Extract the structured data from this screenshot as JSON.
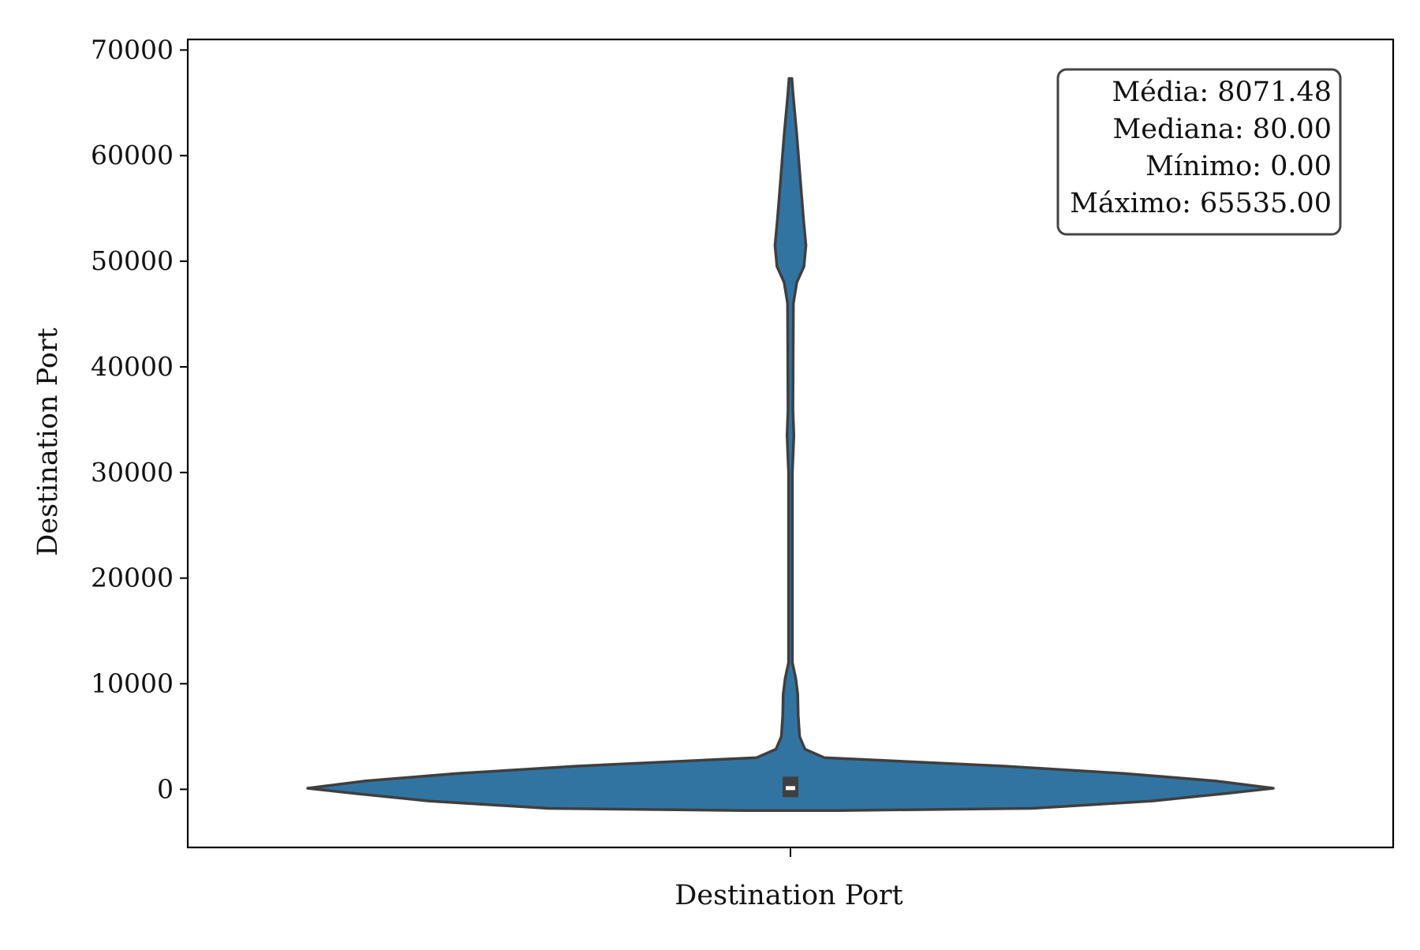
{
  "chart_data": {
    "type": "violin",
    "xlabel": "Destination Port",
    "ylabel": "Destination Port",
    "ylim": [
      -5500,
      71000
    ],
    "yticks": [
      0,
      10000,
      20000,
      30000,
      40000,
      50000,
      60000,
      70000
    ],
    "ytick_labels": [
      "0",
      "10000",
      "20000",
      "30000",
      "40000",
      "50000",
      "60000",
      "70000"
    ],
    "categories": [
      ""
    ],
    "grid": false,
    "colors": {
      "violin_fill": "#3274a1",
      "violin_edge": "#3f3f3f",
      "box": "#3f3f3f",
      "median": "#ffffff"
    },
    "violin": {
      "density_profile": [
        {
          "y": -2000,
          "half_width": 0.1
        },
        {
          "y": -1800,
          "half_width": 0.5
        },
        {
          "y": -1100,
          "half_width": 0.75
        },
        {
          "y": -400,
          "half_width": 0.9
        },
        {
          "y": 100,
          "half_width": 1.0
        },
        {
          "y": 800,
          "half_width": 0.88
        },
        {
          "y": 1500,
          "half_width": 0.69
        },
        {
          "y": 2200,
          "half_width": 0.44
        },
        {
          "y": 3000,
          "half_width": 0.07
        },
        {
          "y": 3800,
          "half_width": 0.03
        },
        {
          "y": 5000,
          "half_width": 0.019
        },
        {
          "y": 7000,
          "half_width": 0.016
        },
        {
          "y": 9000,
          "half_width": 0.015
        },
        {
          "y": 10500,
          "half_width": 0.011
        },
        {
          "y": 12000,
          "half_width": 0.004
        },
        {
          "y": 20000,
          "half_width": 0.004
        },
        {
          "y": 30000,
          "half_width": 0.004
        },
        {
          "y": 33500,
          "half_width": 0.007
        },
        {
          "y": 36000,
          "half_width": 0.005
        },
        {
          "y": 46000,
          "half_width": 0.006
        },
        {
          "y": 48000,
          "half_width": 0.013
        },
        {
          "y": 49500,
          "half_width": 0.028
        },
        {
          "y": 51500,
          "half_width": 0.032
        },
        {
          "y": 54000,
          "half_width": 0.027
        },
        {
          "y": 58000,
          "half_width": 0.02
        },
        {
          "y": 62000,
          "half_width": 0.013
        },
        {
          "y": 64500,
          "half_width": 0.008
        },
        {
          "y": 66000,
          "half_width": 0.005
        },
        {
          "y": 67300,
          "half_width": 0.003
        }
      ],
      "quartiles": {
        "q1": 0,
        "median": 80,
        "q3": 900
      }
    },
    "stats": {
      "mean": "Média: 8071.48",
      "median": "Mediana: 80.00",
      "min": "Mínimo: 0.00",
      "max": "Máximo: 65535.00"
    },
    "stats_box_placement": "top-right"
  }
}
